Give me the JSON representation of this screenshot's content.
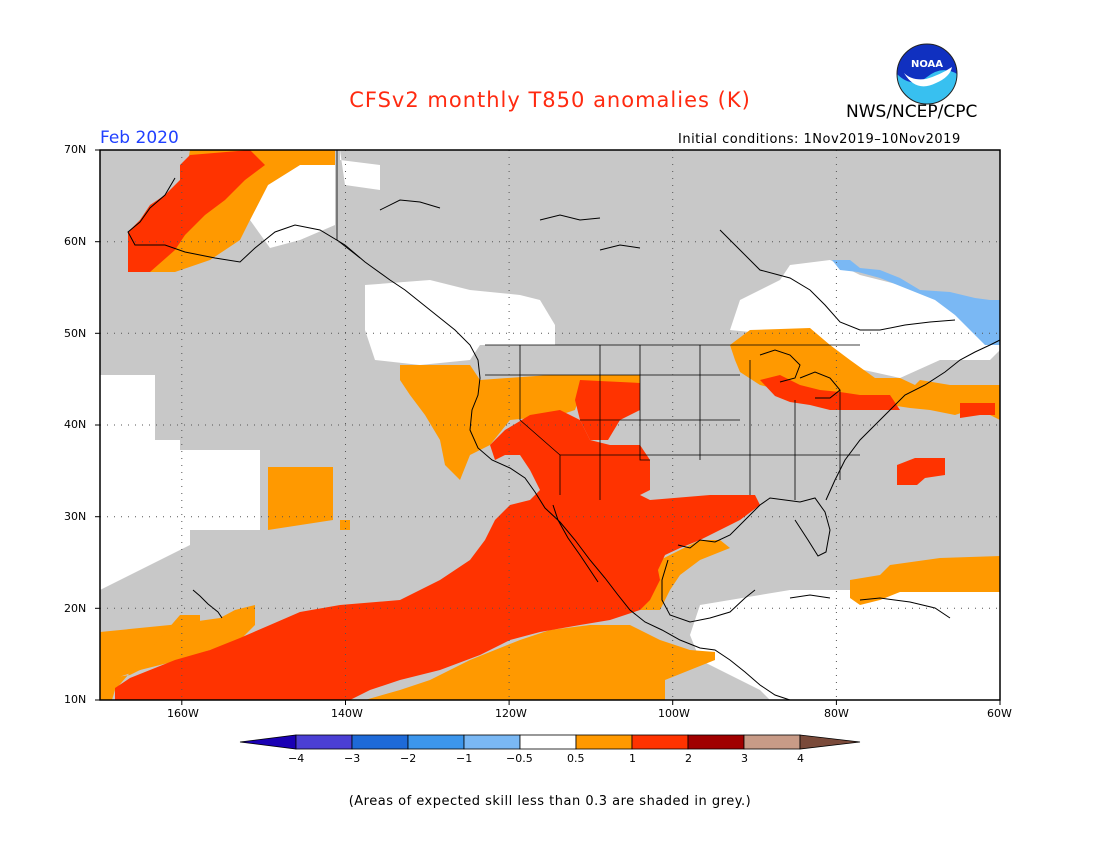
{
  "header": {
    "title": "CFSv2 monthly T850 anomalies (K)",
    "org": "NWS/NCEP/CPC",
    "valid_month": "Feb 2020",
    "initial_conditions": "Initial conditions: 1Nov2019–10Nov2019",
    "logo_text": "NOAA"
  },
  "map": {
    "lat_range": [
      10,
      70
    ],
    "lon_range": [
      -170,
      -60
    ],
    "lat_labels": [
      "70N",
      "60N",
      "50N",
      "40N",
      "30N",
      "20N",
      "10N"
    ],
    "lon_labels": [
      "160W",
      "140W",
      "120W",
      "100W",
      "80W",
      "60W"
    ]
  },
  "legend": {
    "labels": [
      "−4",
      "−3",
      "−2",
      "−1",
      "−0.5",
      "0.5",
      "1",
      "2",
      "3",
      "4"
    ],
    "colors": [
      "#1a00b4",
      "#4b3fd4",
      "#1e6ad8",
      "#3c96ec",
      "#7ab8f4",
      "#ffffff",
      "#ff9900",
      "#ff3300",
      "#a00000",
      "#c89b87",
      "#7a4a3a"
    ]
  },
  "footer": {
    "note": "(Areas of expected skill less than 0.3 are shaded in grey.)"
  },
  "colors": {
    "grey_skill": "#c8c8c8",
    "orange": "#ff9900",
    "red": "#ff3300",
    "light_blue": "#7ab8f4"
  }
}
